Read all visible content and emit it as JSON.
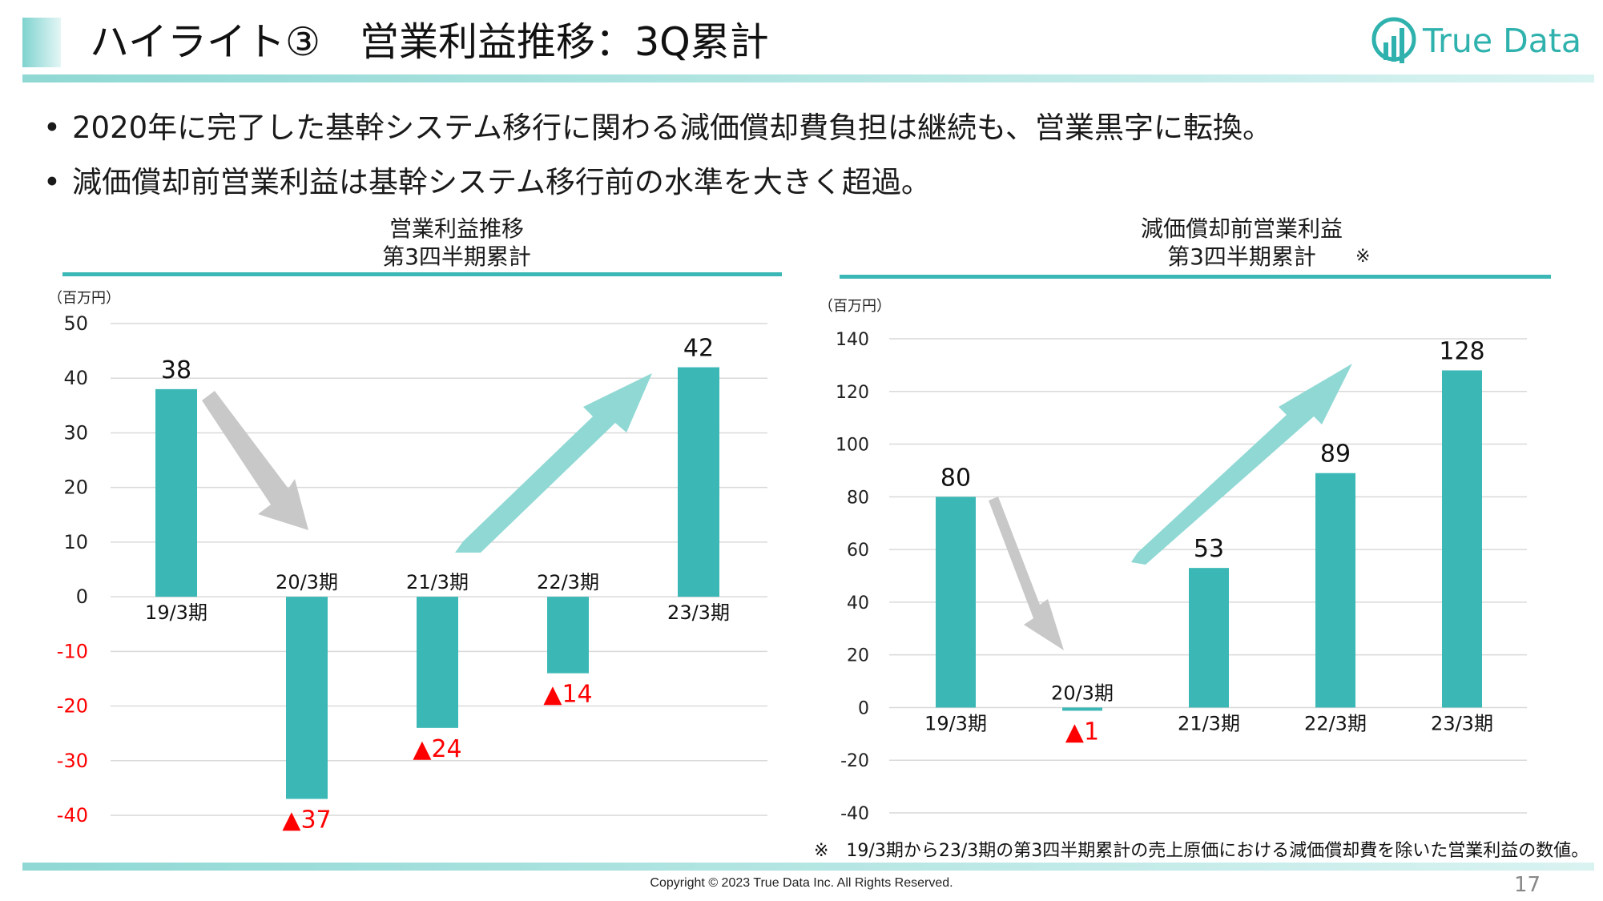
{
  "slide": {
    "title": "ハイライト③　営業利益推移：3Q累計",
    "logo_text": "True Data",
    "bullets": [
      "2020年に完了した基幹システム移行に関わる減価償却費負担は継続も、営業黒字に転換。",
      "減価償却前営業利益は基幹システム移行前の水準を大きく超過。"
    ],
    "footnote": "※　19/3期から23/3期の第3四半期累計の売上原価における減価償却費を除いた営業利益の数値。",
    "copyright": "Copyright © 2023 True Data Inc. All Rights Reserved.",
    "page_number": "17",
    "colors": {
      "bar": "#3bb8b5",
      "accent": "#2fb2ad",
      "negative_label": "#ff0000",
      "gridline": "#d9d9d9"
    }
  },
  "chart_data": [
    {
      "type": "bar",
      "title_line1": "営業利益推移",
      "title_line2": "第3四半期累計",
      "unit": "（百万円）",
      "categories": [
        "19/3期",
        "20/3期",
        "21/3期",
        "22/3期",
        "23/3期"
      ],
      "values": [
        38,
        -37,
        -24,
        -14,
        42
      ],
      "data_labels": [
        "38",
        "▲37",
        "▲24",
        "▲14",
        "42"
      ],
      "yticks": [
        "50",
        "40",
        "30",
        "20",
        "10",
        "0",
        "-10",
        "-20",
        "-30",
        "-40"
      ],
      "ylim": [
        -40,
        50
      ],
      "ystep": 10,
      "grid": true
    },
    {
      "type": "bar",
      "title_line1": "減価償却前営業利益",
      "title_line2": "第3四半期累計",
      "title_note": "※",
      "unit": "（百万円）",
      "categories": [
        "19/3期",
        "20/3期",
        "21/3期",
        "22/3期",
        "23/3期"
      ],
      "values": [
        80,
        -1,
        53,
        89,
        128
      ],
      "data_labels": [
        "80",
        "▲1",
        "53",
        "89",
        "128"
      ],
      "yticks": [
        "140",
        "120",
        "100",
        "80",
        "60",
        "40",
        "20",
        "0",
        "-20",
        "-40"
      ],
      "ylim": [
        -40,
        140
      ],
      "ystep": 20,
      "grid": true
    }
  ]
}
